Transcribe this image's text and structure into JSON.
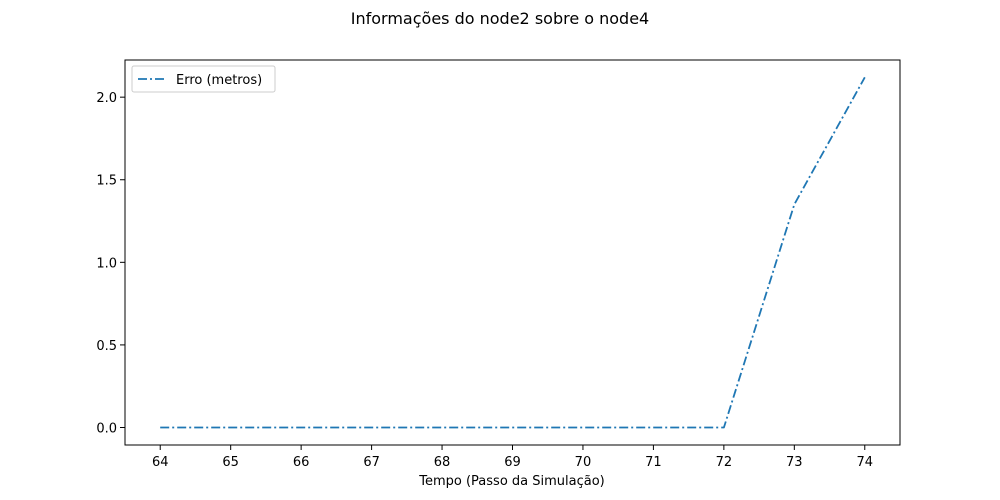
{
  "chart_data": {
    "type": "line",
    "title": "Informações do node2 sobre o node4",
    "xlabel": "Tempo (Passo da Simulação)",
    "ylabel": "",
    "x": [
      64,
      65,
      66,
      67,
      68,
      69,
      70,
      71,
      72,
      73,
      74
    ],
    "xticks": [
      64,
      65,
      66,
      67,
      68,
      69,
      70,
      71,
      72,
      73,
      74
    ],
    "yticks": [
      0.0,
      0.5,
      1.0,
      1.5,
      2.0
    ],
    "ytick_labels": [
      "0.0",
      "0.5",
      "1.0",
      "1.5",
      "2.0"
    ],
    "xlim": [
      63.5,
      74.5
    ],
    "ylim": [
      -0.106,
      2.225
    ],
    "grid": false,
    "legend_position": "top-left",
    "series": [
      {
        "name": "Erro (metros)",
        "color": "#1f77b4",
        "line_style": "dash-dot",
        "values": [
          0,
          0,
          0,
          0,
          0,
          0,
          0,
          0,
          0,
          1.35,
          2.12
        ]
      }
    ]
  }
}
